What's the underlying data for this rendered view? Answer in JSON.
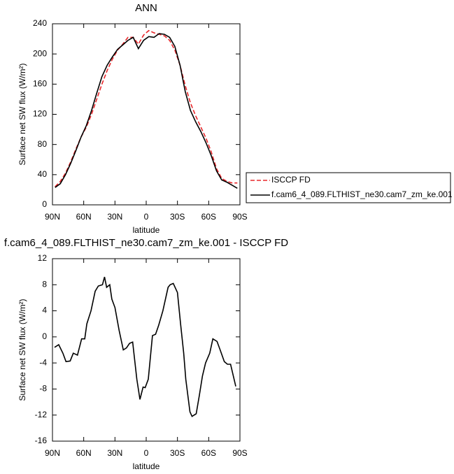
{
  "chart_data": [
    {
      "type": "line",
      "title": "ANN",
      "xlabel": "latitude",
      "ylabel": "Surface net SW flux (W/m²)",
      "x": [
        87.5,
        82.5,
        77.5,
        72.5,
        67.5,
        62.5,
        57.5,
        52.5,
        47.5,
        42.5,
        37.5,
        32.5,
        27.5,
        22.5,
        17.5,
        12.5,
        7.5,
        2.5,
        -2.5,
        -7.5,
        -12.5,
        -17.5,
        -22.5,
        -27.5,
        -32.5,
        -37.5,
        -42.5,
        -47.5,
        -52.5,
        -57.5,
        -62.5,
        -67.5,
        -72.5,
        -77.5,
        -82.5,
        -87.5
      ],
      "xlim": [
        90,
        -90
      ],
      "xticks": [
        {
          "value": 90,
          "label": "90N"
        },
        {
          "value": 60,
          "label": "60N"
        },
        {
          "value": 30,
          "label": "30N"
        },
        0,
        {
          "value": -30,
          "label": "30S"
        },
        {
          "value": -60,
          "label": "60S"
        },
        {
          "value": -90,
          "label": "90S"
        }
      ],
      "ylim": [
        0,
        240
      ],
      "yticks": [
        0,
        40,
        80,
        120,
        160,
        200,
        240
      ],
      "legend": "right",
      "series": [
        {
          "name": "ISCCP FD",
          "color": "#e8282b",
          "style": "dashed",
          "values": [
            24,
            31,
            42,
            57,
            74,
            90,
            103,
            120,
            140,
            160,
            178,
            193,
            205,
            213,
            222,
            222,
            213,
            225,
            231,
            228,
            226,
            224,
            218,
            205,
            185,
            158,
            135,
            118,
            103,
            88,
            70,
            48,
            35,
            31,
            29,
            29
          ]
        },
        {
          "name": "f.cam6_4_089.FLTHIST_ne30.cam7_zm_ke.001",
          "color": "#000000",
          "style": "solid",
          "values": [
            23,
            28,
            40,
            55,
            72,
            90,
            105,
            125,
            148,
            170,
            185,
            196,
            206,
            212,
            218,
            222,
            207,
            218,
            223,
            222,
            227,
            226,
            222,
            210,
            185,
            150,
            125,
            110,
            97,
            82,
            65,
            45,
            33,
            30,
            26,
            22
          ]
        }
      ]
    },
    {
      "type": "line",
      "title": "f.cam6_4_089.FLTHIST_ne30.cam7_zm_ke.001 - ISCCP FD",
      "xlabel": "latitude",
      "ylabel": "Surface net SW flux (W/m²)",
      "x": [
        88,
        84,
        80,
        77,
        73,
        70,
        66,
        62,
        59,
        57,
        53,
        49,
        46,
        42,
        40,
        38,
        35,
        33,
        30,
        26,
        22,
        19,
        16,
        13,
        9,
        6,
        3,
        1,
        -2,
        -6,
        -9,
        -12,
        -16,
        -21,
        -23,
        -26,
        -30,
        -33,
        -36,
        -38,
        -42,
        -44,
        -48,
        -51,
        -54,
        -57,
        -61,
        -64,
        -68,
        -71,
        -75,
        -78,
        -81,
        -86
      ],
      "xlim": [
        90,
        -90
      ],
      "xticks": [
        {
          "value": 90,
          "label": "90N"
        },
        {
          "value": 60,
          "label": "60N"
        },
        {
          "value": 30,
          "label": "30N"
        },
        0,
        {
          "value": -30,
          "label": "30S"
        },
        {
          "value": -60,
          "label": "60S"
        },
        {
          "value": -90,
          "label": "90S"
        }
      ],
      "ylim": [
        -16,
        12
      ],
      "yticks": [
        -16,
        -12,
        -8,
        -4,
        0,
        4,
        8,
        12
      ],
      "series": [
        {
          "color": "#000000",
          "style": "solid",
          "values": [
            -1.6,
            -1.2,
            -2.5,
            -3.8,
            -3.7,
            -2.5,
            -2.8,
            -0.3,
            -0.3,
            2,
            4,
            7,
            7.8,
            8,
            9.2,
            7.6,
            8,
            5.8,
            4.5,
            1,
            -2,
            -1.7,
            -1,
            -0.8,
            -6.5,
            -9.6,
            -7.7,
            -7.8,
            -6.5,
            0.2,
            0.4,
            1.8,
            4,
            7.6,
            8,
            8.2,
            6.8,
            2,
            -2.5,
            -6.5,
            -11.5,
            -12.2,
            -11.8,
            -9,
            -6,
            -4,
            -2.5,
            -0.3,
            -0.7,
            -2,
            -3.8,
            -4.2,
            -4.2,
            -7.6
          ]
        }
      ]
    }
  ]
}
